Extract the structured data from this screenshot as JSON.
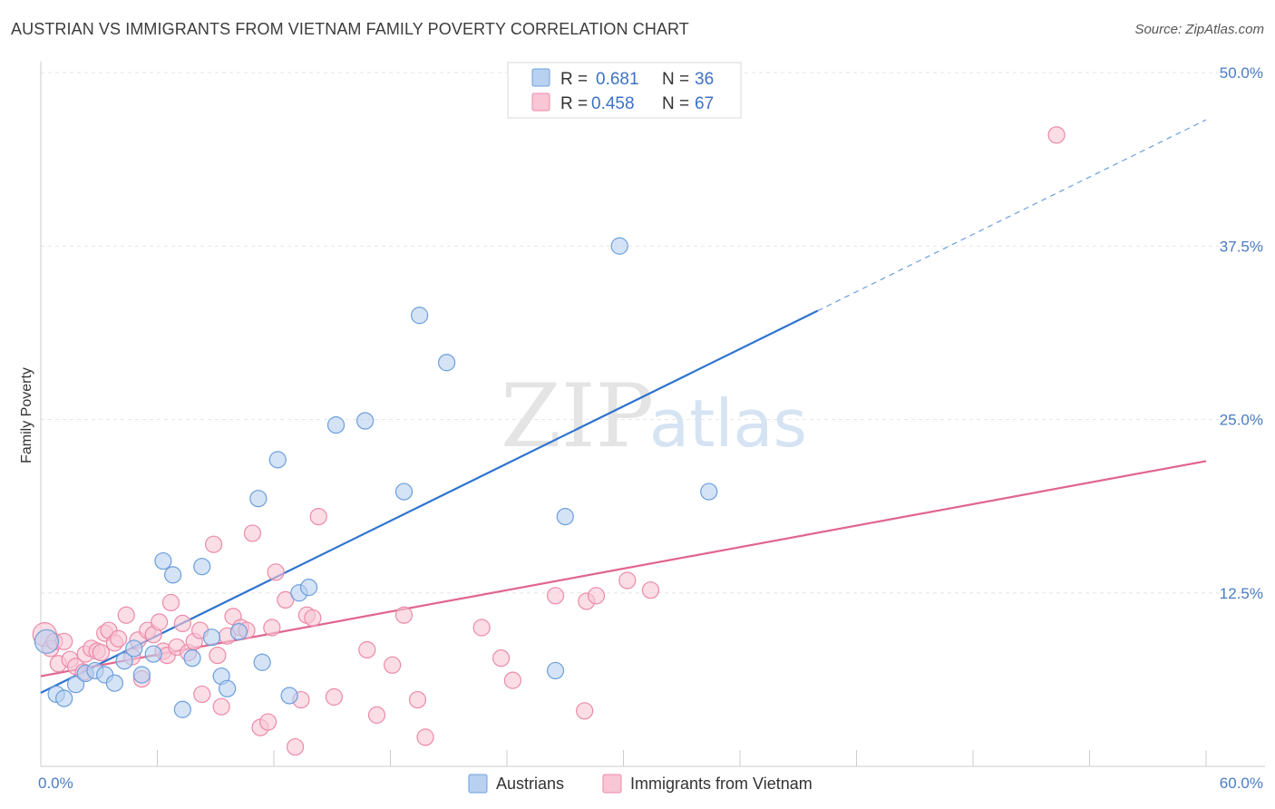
{
  "title": "AUSTRIAN VS IMMIGRANTS FROM VIETNAM FAMILY POVERTY CORRELATION CHART",
  "source": "Source: ZipAtlas.com",
  "watermark": {
    "zip": "ZIP",
    "atlas": "atlas"
  },
  "chart_data": {
    "type": "scatter",
    "ylabel": "Family Poverty",
    "xlim": [
      0,
      60
    ],
    "ylim": [
      0,
      50
    ],
    "x_tick_labels": [
      {
        "value": 0,
        "label": "0.0%"
      },
      {
        "value": 60,
        "label": "60.0%"
      }
    ],
    "y_ticks": [
      {
        "value": 12.5,
        "label": "12.5%"
      },
      {
        "value": 25,
        "label": "25.0%"
      },
      {
        "value": 37.5,
        "label": "37.5%"
      },
      {
        "value": 50,
        "label": "50.0%"
      }
    ],
    "legend": [
      {
        "r_label": "R =",
        "r_value": "0.681",
        "n_label": "N =",
        "n_value": "36"
      },
      {
        "r_label": "R =",
        "r_value": "0.458",
        "n_label": "N =",
        "n_value": "67"
      }
    ],
    "series": [
      {
        "name": "Austrians",
        "color": "#6a9fdc",
        "fill": "#b9d1f0",
        "line_color": "#2f74cf",
        "trend": {
          "x0": 0,
          "y0": 5.3,
          "x1": 60,
          "y1": 46.6,
          "solid_until_x": 40
        },
        "points": [
          [
            0.3,
            9.0
          ],
          [
            0.8,
            5.2
          ],
          [
            1.2,
            4.9
          ],
          [
            1.8,
            5.9
          ],
          [
            2.3,
            6.7
          ],
          [
            2.8,
            6.9
          ],
          [
            3.3,
            6.6
          ],
          [
            3.8,
            6.0
          ],
          [
            4.3,
            7.6
          ],
          [
            4.8,
            8.5
          ],
          [
            5.2,
            6.6
          ],
          [
            5.8,
            8.1
          ],
          [
            6.3,
            14.8
          ],
          [
            6.8,
            13.8
          ],
          [
            7.3,
            4.1
          ],
          [
            7.8,
            7.8
          ],
          [
            8.3,
            14.4
          ],
          [
            8.8,
            9.3
          ],
          [
            9.3,
            6.5
          ],
          [
            9.6,
            5.6
          ],
          [
            10.2,
            9.7
          ],
          [
            11.2,
            19.3
          ],
          [
            11.4,
            7.5
          ],
          [
            12.2,
            22.1
          ],
          [
            12.8,
            5.1
          ],
          [
            13.3,
            12.5
          ],
          [
            13.8,
            12.9
          ],
          [
            15.2,
            24.6
          ],
          [
            16.7,
            24.9
          ],
          [
            18.7,
            19.8
          ],
          [
            19.5,
            32.5
          ],
          [
            20.9,
            29.1
          ],
          [
            27.0,
            18.0
          ],
          [
            29.8,
            37.5
          ],
          [
            34.4,
            19.8
          ],
          [
            26.5,
            6.9
          ]
        ]
      },
      {
        "name": "Immigrants from Vietnam",
        "color": "#ec8aa8",
        "fill": "#f8c6d5",
        "line_color": "#e0658d",
        "trend": {
          "x0": 0,
          "y0": 6.5,
          "x1": 60,
          "y1": 22.0,
          "solid_until_x": 60
        },
        "points": [
          [
            0.2,
            9.5
          ],
          [
            0.5,
            8.5
          ],
          [
            0.7,
            9.0
          ],
          [
            0.9,
            7.4
          ],
          [
            1.2,
            9.0
          ],
          [
            1.5,
            7.7
          ],
          [
            1.8,
            7.2
          ],
          [
            2.2,
            6.8
          ],
          [
            2.3,
            8.1
          ],
          [
            2.6,
            8.5
          ],
          [
            2.9,
            8.3
          ],
          [
            3.1,
            8.2
          ],
          [
            3.3,
            9.6
          ],
          [
            3.5,
            9.8
          ],
          [
            3.8,
            8.9
          ],
          [
            4.0,
            9.2
          ],
          [
            4.4,
            10.9
          ],
          [
            4.7,
            7.9
          ],
          [
            5.0,
            9.1
          ],
          [
            5.2,
            6.3
          ],
          [
            5.5,
            9.8
          ],
          [
            5.8,
            9.5
          ],
          [
            6.1,
            10.4
          ],
          [
            6.3,
            8.3
          ],
          [
            6.5,
            8.0
          ],
          [
            6.7,
            11.8
          ],
          [
            7.0,
            8.6
          ],
          [
            7.3,
            10.3
          ],
          [
            7.6,
            8.2
          ],
          [
            7.9,
            9.0
          ],
          [
            8.2,
            9.8
          ],
          [
            8.3,
            5.2
          ],
          [
            8.9,
            16.0
          ],
          [
            9.1,
            8.0
          ],
          [
            9.3,
            4.3
          ],
          [
            9.6,
            9.4
          ],
          [
            9.9,
            10.8
          ],
          [
            10.3,
            10.0
          ],
          [
            10.6,
            9.8
          ],
          [
            10.9,
            16.8
          ],
          [
            11.3,
            2.8
          ],
          [
            11.7,
            3.2
          ],
          [
            11.9,
            10.0
          ],
          [
            12.1,
            14.0
          ],
          [
            12.6,
            12.0
          ],
          [
            13.1,
            1.4
          ],
          [
            13.4,
            4.8
          ],
          [
            13.7,
            10.9
          ],
          [
            14.0,
            10.7
          ],
          [
            14.3,
            18.0
          ],
          [
            15.1,
            5.0
          ],
          [
            16.8,
            8.4
          ],
          [
            17.3,
            3.7
          ],
          [
            18.1,
            7.3
          ],
          [
            18.7,
            10.9
          ],
          [
            19.4,
            4.8
          ],
          [
            19.8,
            2.1
          ],
          [
            22.7,
            10.0
          ],
          [
            23.7,
            7.8
          ],
          [
            24.3,
            6.2
          ],
          [
            26.5,
            12.3
          ],
          [
            28.0,
            4.0
          ],
          [
            28.1,
            11.9
          ],
          [
            28.6,
            12.3
          ],
          [
            30.2,
            13.4
          ],
          [
            31.4,
            12.7
          ],
          [
            52.3,
            45.5
          ]
        ]
      }
    ]
  }
}
